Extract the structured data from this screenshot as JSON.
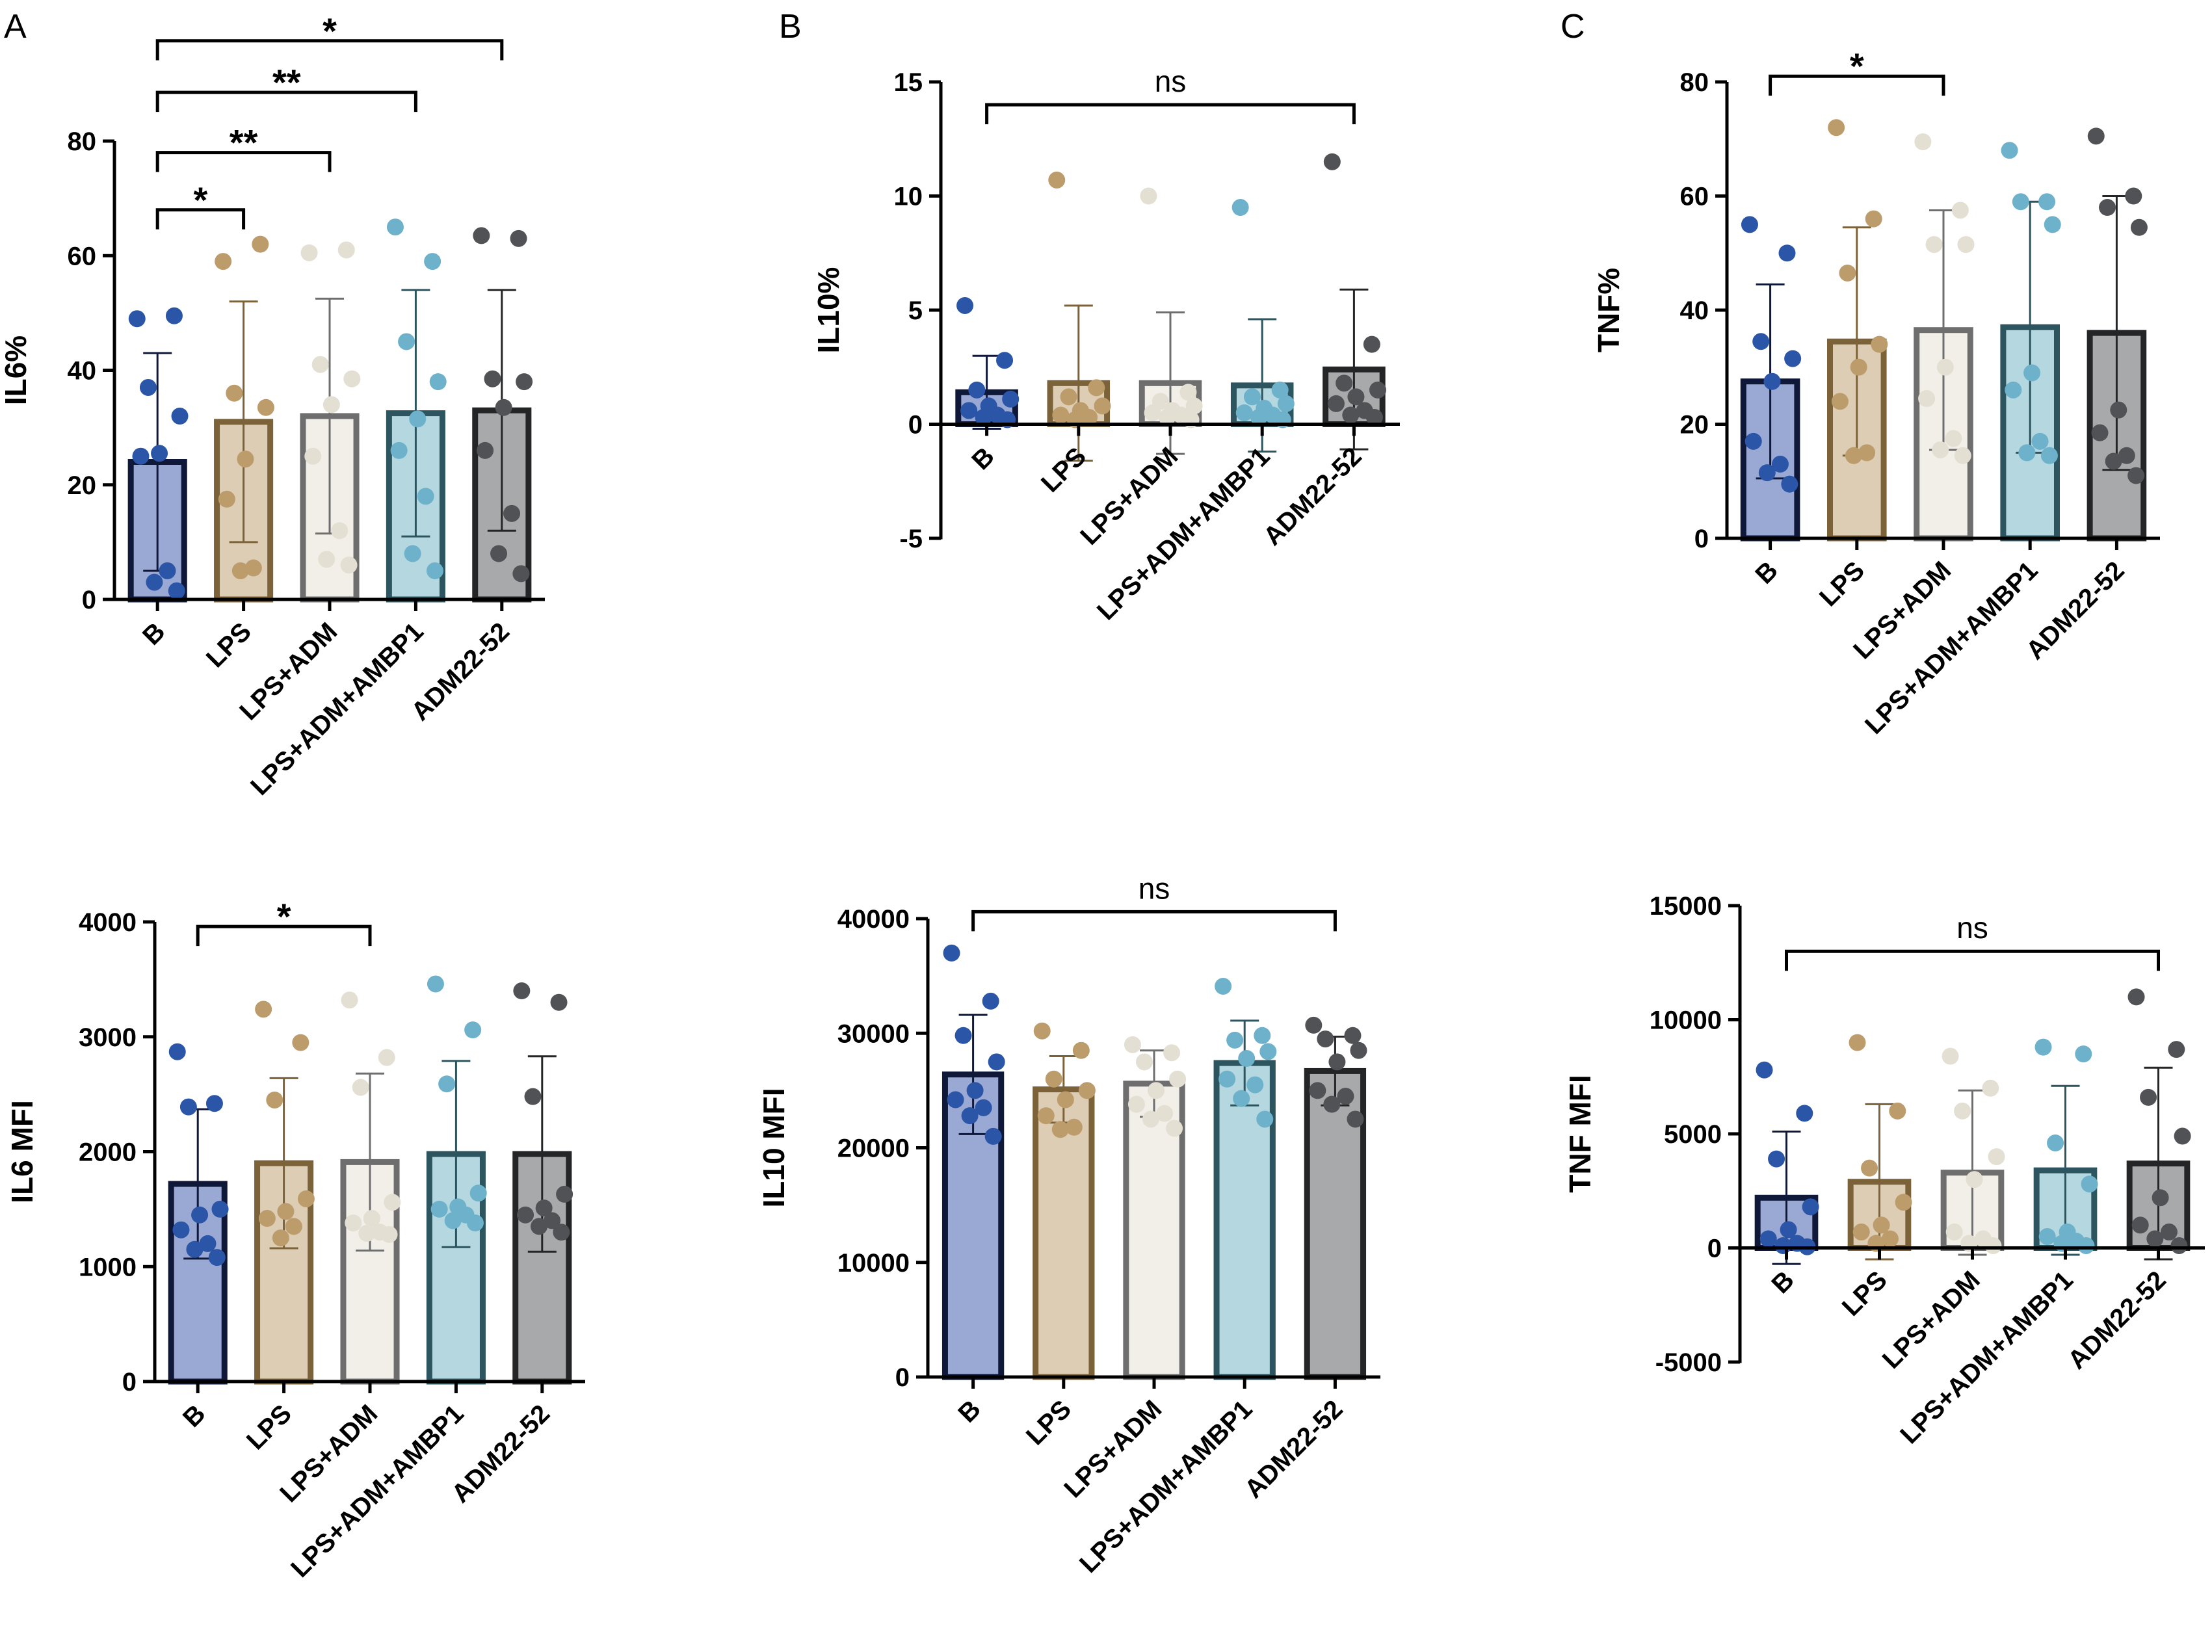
{
  "panel_letters": {
    "A": "A",
    "B": "B",
    "C": "C"
  },
  "groups": {
    "B": {
      "fill": "#9aa8d4",
      "stroke": "#10183a",
      "dot": "#2b55a6"
    },
    "LPS": {
      "fill": "#dccdb4",
      "stroke": "#7c6238",
      "dot": "#bd9c6c"
    },
    "ADM": {
      "fill": "#f2efe9",
      "stroke": "#6e6e6e",
      "dot": "#e4dfd3"
    },
    "AMB": {
      "fill": "#b4d7e0",
      "stroke": "#2d5560",
      "dot": "#6db2ca"
    },
    "D22": {
      "fill": "#a8a9ab",
      "stroke": "#242526",
      "dot": "#505256"
    }
  },
  "chart_data": [
    {
      "id": "il6pct",
      "type": "bar",
      "title": "",
      "ylabel": "IL6%",
      "xlabel": "",
      "ylim": [
        0,
        80
      ],
      "yticks": [
        0,
        20,
        40,
        60,
        80
      ],
      "ytick_labels": [
        "0",
        "20",
        "40",
        "60",
        "80"
      ],
      "categories": [
        "B",
        "LPS",
        "LPS+ADM",
        "LPS+ADM+AMBP1",
        "ADM22-52"
      ],
      "group_keys": [
        "B",
        "LPS",
        "ADM",
        "AMB",
        "D22"
      ],
      "means": [
        24,
        31,
        32,
        32.5,
        33
      ],
      "sd": [
        19,
        21,
        20.5,
        21.5,
        21
      ],
      "points": [
        [
          49,
          49.5,
          37,
          32,
          25.5,
          25,
          5,
          3,
          1.5
        ],
        [
          59,
          62,
          36,
          33.5,
          24.5,
          17.5,
          5.5,
          5
        ],
        [
          60.5,
          61,
          41,
          38.5,
          34,
          25,
          12,
          7,
          6
        ],
        [
          65,
          59,
          45,
          38,
          31.5,
          26,
          18,
          8,
          5
        ],
        [
          63.5,
          63,
          38.5,
          38,
          33.5,
          26,
          15,
          8,
          4.5
        ]
      ],
      "brackets": [
        {
          "from": 0,
          "to": 1,
          "y": 68,
          "label": "*"
        },
        {
          "from": 0,
          "to": 2,
          "y": 78,
          "label": "**"
        },
        {
          "from": 0,
          "to": 3,
          "y": 88.5,
          "label": "**"
        },
        {
          "from": 0,
          "to": 4,
          "y": 97.5,
          "label": "*"
        }
      ]
    },
    {
      "id": "il10pct",
      "type": "bar",
      "title": "",
      "ylabel": "IL10%",
      "xlabel": "",
      "ylim": [
        -5,
        15
      ],
      "yticks": [
        -5,
        0,
        5,
        10,
        15
      ],
      "ytick_labels": [
        "-5",
        "0",
        "5",
        "10",
        "15"
      ],
      "categories": [
        "B",
        "LPS",
        "LPS+ADM",
        "LPS+ADM+AMBP1",
        "ADM22-52"
      ],
      "group_keys": [
        "B",
        "LPS",
        "ADM",
        "AMB",
        "D22"
      ],
      "means": [
        1.4,
        1.8,
        1.8,
        1.7,
        2.4
      ],
      "sd": [
        1.6,
        3.4,
        3.1,
        2.9,
        3.5
      ],
      "points": [
        [
          5.2,
          2.8,
          1.5,
          1.1,
          0.8,
          0.6,
          0.4,
          0.3,
          0.2
        ],
        [
          10.7,
          1.6,
          1.2,
          0.8,
          0.6,
          0.4,
          0.3,
          0.2
        ],
        [
          10,
          1.4,
          1,
          0.8,
          0.6,
          0.5,
          0.4,
          0.3,
          0.2
        ],
        [
          9.5,
          1.5,
          1.2,
          0.9,
          0.7,
          0.5,
          0.4,
          0.3,
          0.2
        ],
        [
          11.5,
          3.5,
          1.8,
          1.5,
          1.2,
          0.9,
          0.6,
          0.4,
          0.3
        ]
      ],
      "brackets": [
        {
          "from": 0,
          "to": 4,
          "y": 14,
          "label": "ns"
        }
      ]
    },
    {
      "id": "tnfpct",
      "type": "bar",
      "title": "",
      "ylabel": "TNF%",
      "xlabel": "",
      "ylim": [
        0,
        80
      ],
      "yticks": [
        0,
        20,
        40,
        60,
        80
      ],
      "ytick_labels": [
        "0",
        "20",
        "40",
        "60",
        "80"
      ],
      "categories": [
        "B",
        "LPS",
        "LPS+ADM",
        "LPS+ADM+AMBP1",
        "ADM22-52"
      ],
      "group_keys": [
        "B",
        "LPS",
        "ADM",
        "AMB",
        "D22"
      ],
      "means": [
        27.5,
        34.5,
        36.5,
        37,
        36
      ],
      "sd": [
        17,
        20,
        21,
        22,
        24
      ],
      "points": [
        [
          55,
          50,
          34.5,
          31.5,
          27.5,
          17,
          13,
          11.5,
          9.5
        ],
        [
          72,
          56,
          46.5,
          34,
          30,
          24,
          15,
          14.5
        ],
        [
          69.5,
          57.5,
          51.5,
          51.5,
          30,
          24.5,
          17.5,
          15.5,
          14.5
        ],
        [
          68,
          59,
          59,
          55,
          29,
          26,
          17,
          15,
          14.5
        ],
        [
          70.5,
          60,
          58,
          54.5,
          22.5,
          18.5,
          14.5,
          13.5,
          11
        ]
      ],
      "brackets": [
        {
          "from": 0,
          "to": 2,
          "y": 81,
          "label": "*"
        }
      ]
    },
    {
      "id": "il6mfi",
      "type": "bar",
      "title": "",
      "ylabel": "IL6 MFI",
      "xlabel": "",
      "ylim": [
        0,
        4000
      ],
      "yticks": [
        0,
        1000,
        2000,
        3000,
        4000
      ],
      "ytick_labels": [
        "0",
        "1000",
        "2000",
        "3000",
        "4000"
      ],
      "categories": [
        "B",
        "LPS",
        "LPS+ADM",
        "LPS+ADM+AMBP1",
        "ADM22-52"
      ],
      "group_keys": [
        "B",
        "LPS",
        "ADM",
        "AMB",
        "D22"
      ],
      "means": [
        1720,
        1900,
        1910,
        1980,
        1980
      ],
      "sd": [
        650,
        740,
        770,
        810,
        850
      ],
      "points": [
        [
          2870,
          2420,
          2390,
          1500,
          1450,
          1320,
          1200,
          1150,
          1080
        ],
        [
          3240,
          2950,
          2450,
          1590,
          1480,
          1420,
          1350,
          1250
        ],
        [
          3320,
          2820,
          2560,
          1560,
          1420,
          1380,
          1300,
          1290,
          1280
        ],
        [
          3460,
          3060,
          2590,
          1640,
          1520,
          1500,
          1450,
          1400,
          1380
        ],
        [
          3400,
          3300,
          2480,
          1630,
          1510,
          1450,
          1400,
          1350,
          1300
        ]
      ],
      "brackets": [
        {
          "from": 0,
          "to": 2,
          "y": 3960,
          "label": "*"
        }
      ]
    },
    {
      "id": "il10mfi",
      "type": "bar",
      "title": "",
      "ylabel": "IL10 MFI",
      "xlabel": "",
      "ylim": [
        0,
        40000
      ],
      "yticks": [
        0,
        10000,
        20000,
        30000,
        40000
      ],
      "ytick_labels": [
        "0",
        "10000",
        "20000",
        "30000",
        "40000"
      ],
      "categories": [
        "B",
        "LPS",
        "LPS+ADM",
        "LPS+ADM+AMBP1",
        "ADM22-52"
      ],
      "group_keys": [
        "B",
        "LPS",
        "ADM",
        "AMB",
        "D22"
      ],
      "means": [
        26400,
        25100,
        25600,
        27400,
        26700
      ],
      "sd": [
        5200,
        2900,
        2900,
        3700,
        3000
      ],
      "points": [
        [
          37000,
          32800,
          29800,
          27500,
          25000,
          24200,
          23500,
          22800,
          21000
        ],
        [
          30200,
          28500,
          26000,
          25000,
          24200,
          22800,
          21800,
          21600
        ],
        [
          29000,
          28300,
          27500,
          26000,
          25000,
          23800,
          23000,
          22500,
          21700
        ],
        [
          34100,
          29800,
          29400,
          28400,
          27800,
          26000,
          25500,
          24300,
          22500
        ],
        [
          30700,
          29800,
          29500,
          28500,
          27500,
          25000,
          24500,
          23800,
          22500
        ]
      ],
      "brackets": [
        {
          "from": 0,
          "to": 4,
          "y": 40600,
          "label": "ns"
        }
      ]
    },
    {
      "id": "tnfmfi",
      "type": "bar",
      "title": "",
      "ylabel": "TNF MFI",
      "xlabel": "",
      "ylim": [
        -5000,
        15000
      ],
      "yticks": [
        -5000,
        0,
        5000,
        10000,
        15000
      ],
      "ytick_labels": [
        "-5000",
        "0",
        "5000",
        "10000",
        "15000"
      ],
      "categories": [
        "B",
        "LPS",
        "LPS+ADM",
        "LPS+ADM+AMBP1",
        "ADM22-52"
      ],
      "group_keys": [
        "B",
        "LPS",
        "ADM",
        "AMB",
        "D22"
      ],
      "means": [
        2200,
        2900,
        3300,
        3400,
        3700
      ],
      "sd": [
        2900,
        3400,
        3600,
        3700,
        4200
      ],
      "points": [
        [
          7800,
          5900,
          3900,
          1800,
          800,
          400,
          200,
          100,
          50
        ],
        [
          9000,
          6000,
          3500,
          2000,
          1000,
          700,
          400,
          200
        ],
        [
          8400,
          7000,
          6000,
          4000,
          3000,
          700,
          400,
          200,
          100
        ],
        [
          8800,
          8500,
          4600,
          2800,
          700,
          500,
          300,
          200,
          100
        ],
        [
          11000,
          8700,
          6600,
          4900,
          2200,
          1000,
          700,
          400,
          100
        ]
      ],
      "brackets": [
        {
          "from": 0,
          "to": 4,
          "y": 13000,
          "label": "ns"
        }
      ]
    }
  ]
}
